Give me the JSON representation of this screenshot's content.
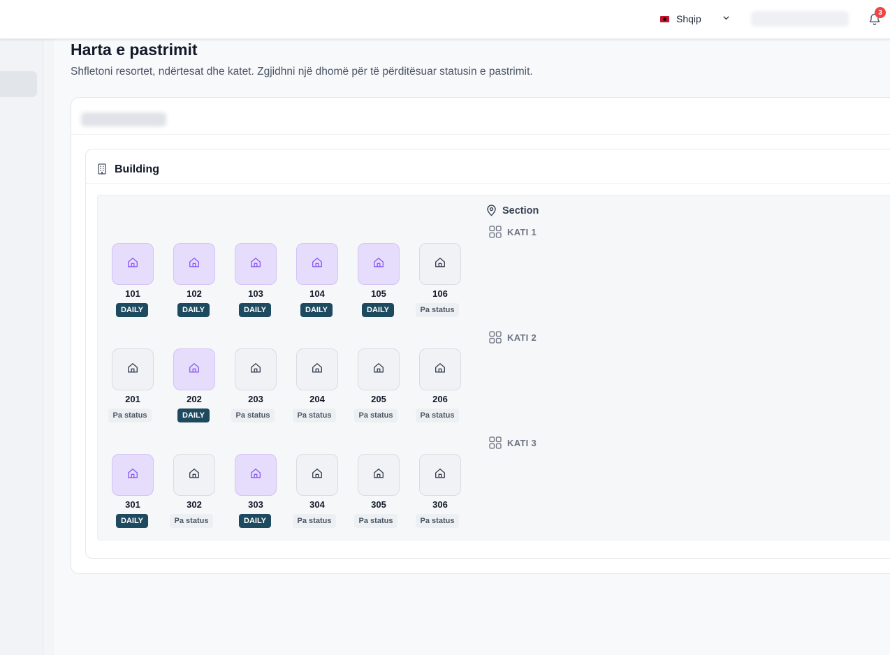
{
  "header": {
    "language": "Shqip",
    "notification_count": "3"
  },
  "page": {
    "title": "Harta e pastrimit",
    "subtitle": "Shfletoni resortet, ndërtesat dhe katet. Zgjidhni një dhomë për të përditësuar statusin e pastrimit."
  },
  "building": {
    "title": "Building",
    "section": "Section",
    "floors": [
      {
        "label": "KATI 1",
        "rooms": [
          {
            "number": "101",
            "status": "DAILY"
          },
          {
            "number": "102",
            "status": "DAILY"
          },
          {
            "number": "103",
            "status": "DAILY"
          },
          {
            "number": "104",
            "status": "DAILY"
          },
          {
            "number": "105",
            "status": "DAILY"
          },
          {
            "number": "106",
            "status": "Pa status"
          }
        ]
      },
      {
        "label": "KATI 2",
        "rooms": [
          {
            "number": "201",
            "status": "Pa status"
          },
          {
            "number": "202",
            "status": "DAILY"
          },
          {
            "number": "203",
            "status": "Pa status"
          },
          {
            "number": "204",
            "status": "Pa status"
          },
          {
            "number": "205",
            "status": "Pa status"
          },
          {
            "number": "206",
            "status": "Pa status"
          }
        ]
      },
      {
        "label": "KATI 3",
        "rooms": [
          {
            "number": "301",
            "status": "DAILY"
          },
          {
            "number": "302",
            "status": "Pa status"
          },
          {
            "number": "303",
            "status": "DAILY"
          },
          {
            "number": "304",
            "status": "Pa status"
          },
          {
            "number": "305",
            "status": "Pa status"
          },
          {
            "number": "306",
            "status": "Pa status"
          }
        ]
      }
    ]
  },
  "colors": {
    "daily_tile": "#e6dcfc",
    "daily_icon": "#8b5cf6",
    "daily_badge": "#1e4a5f",
    "none_tile": "#f1f2f5",
    "notification_badge": "#ef4444"
  }
}
